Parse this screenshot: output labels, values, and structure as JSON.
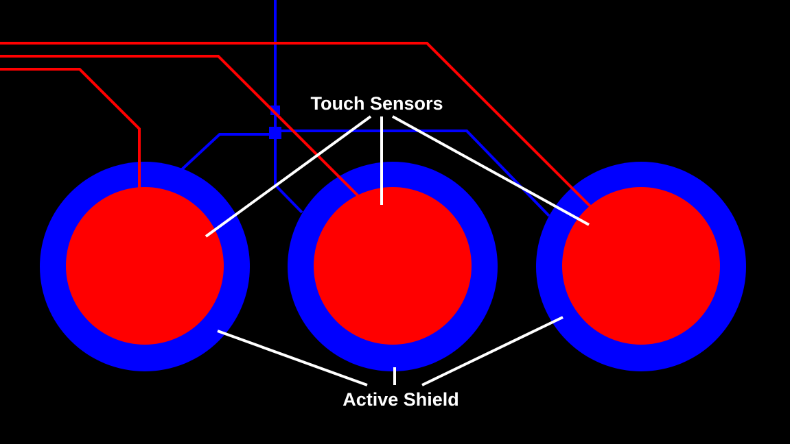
{
  "labels": {
    "sensors": "Touch Sensors",
    "shield": "Active Shield"
  },
  "colors": {
    "background": "#000000",
    "sensor": "#ff0000",
    "shield": "#0000ff",
    "callout": "#ffffff"
  }
}
